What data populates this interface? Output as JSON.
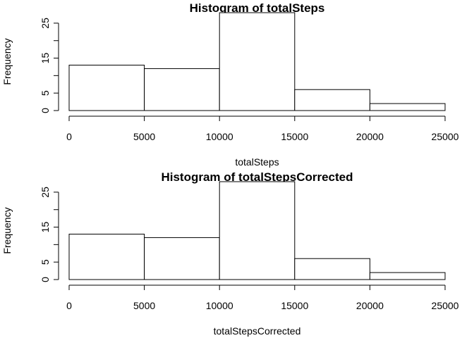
{
  "chart_data": [
    {
      "type": "bar",
      "title": "Histogram of totalSteps",
      "xlabel": "totalSteps",
      "ylabel": "Frequency",
      "bins": [
        [
          0,
          5000
        ],
        [
          5000,
          10000
        ],
        [
          10000,
          15000
        ],
        [
          15000,
          20000
        ],
        [
          20000,
          25000
        ]
      ],
      "values": [
        13,
        12,
        28,
        6,
        2
      ],
      "xlim": [
        0,
        25000
      ],
      "ylim": [
        0,
        28
      ],
      "x_ticks": [
        0,
        5000,
        10000,
        15000,
        20000,
        25000
      ],
      "x_tick_labels": [
        "0",
        "5000",
        "10000",
        "15000",
        "20000",
        "25000"
      ],
      "y_ticks": [
        0,
        5,
        10,
        15,
        20,
        25
      ],
      "y_tick_labels": [
        "0",
        "5",
        "15",
        "25"
      ],
      "y_labeled_ticks": [
        0,
        5,
        15,
        25
      ],
      "grid": false,
      "bar_fill": "#ffffff",
      "bar_stroke": "#000000"
    },
    {
      "type": "bar",
      "title": "Histogram of totalStepsCorrected",
      "xlabel": "totalStepsCorrected",
      "ylabel": "Frequency",
      "bins": [
        [
          0,
          5000
        ],
        [
          5000,
          10000
        ],
        [
          10000,
          15000
        ],
        [
          15000,
          20000
        ],
        [
          20000,
          25000
        ]
      ],
      "values": [
        13,
        12,
        28,
        6,
        2
      ],
      "xlim": [
        0,
        25000
      ],
      "ylim": [
        0,
        28
      ],
      "x_ticks": [
        0,
        5000,
        10000,
        15000,
        20000,
        25000
      ],
      "x_tick_labels": [
        "0",
        "5000",
        "10000",
        "15000",
        "20000",
        "25000"
      ],
      "y_ticks": [
        0,
        5,
        10,
        15,
        20,
        25
      ],
      "y_tick_labels": [
        "0",
        "5",
        "15",
        "25"
      ],
      "y_labeled_ticks": [
        0,
        5,
        15,
        25
      ],
      "grid": false,
      "bar_fill": "#ffffff",
      "bar_stroke": "#000000"
    }
  ]
}
